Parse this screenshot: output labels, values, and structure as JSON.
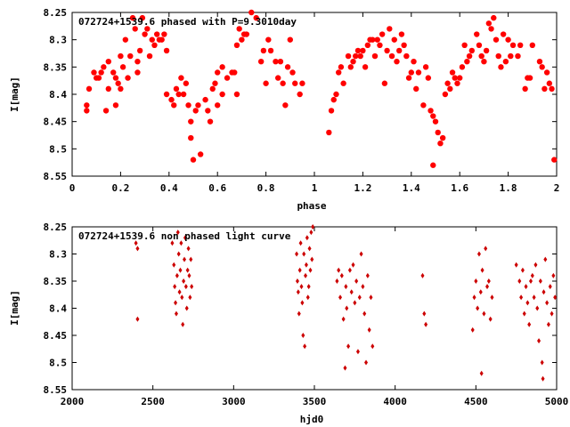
{
  "chart_data": [
    {
      "type": "scatter",
      "title": "072724+1539.6 phased with P=9.3010day",
      "xlabel": "phase",
      "ylabel": "I[mag]",
      "xlim": [
        0,
        2
      ],
      "ylim": [
        8.25,
        8.55
      ],
      "y_inverted": true,
      "xticks": [
        "0",
        "0.2",
        "0.4",
        "0.6",
        "0.8",
        "1",
        "1.2",
        "1.4",
        "1.6",
        "1.8",
        "2"
      ],
      "yticks": [
        "8.25",
        "8.3",
        "8.35",
        "8.4",
        "8.45",
        "8.5",
        "8.55"
      ],
      "marker": "filled-circle",
      "marker_color": "#ff0000",
      "grid": false,
      "points": [
        [
          0.06,
          8.42
        ],
        [
          0.06,
          8.43
        ],
        [
          0.07,
          8.39
        ],
        [
          0.09,
          8.36
        ],
        [
          0.1,
          8.37
        ],
        [
          0.11,
          8.37
        ],
        [
          0.12,
          8.36
        ],
        [
          0.13,
          8.35
        ],
        [
          0.14,
          8.43
        ],
        [
          0.15,
          8.39
        ],
        [
          0.15,
          8.34
        ],
        [
          0.17,
          8.36
        ],
        [
          0.18,
          8.37
        ],
        [
          0.18,
          8.42
        ],
        [
          0.19,
          8.38
        ],
        [
          0.2,
          8.33
        ],
        [
          0.2,
          8.39
        ],
        [
          0.21,
          8.35
        ],
        [
          0.22,
          8.3
        ],
        [
          0.23,
          8.37
        ],
        [
          0.24,
          8.33
        ],
        [
          0.25,
          8.26
        ],
        [
          0.26,
          8.28
        ],
        [
          0.27,
          8.36
        ],
        [
          0.27,
          8.34
        ],
        [
          0.28,
          8.32
        ],
        [
          0.29,
          8.26
        ],
        [
          0.3,
          8.29
        ],
        [
          0.31,
          8.28
        ],
        [
          0.32,
          8.33
        ],
        [
          0.33,
          8.3
        ],
        [
          0.34,
          8.31
        ],
        [
          0.35,
          8.29
        ],
        [
          0.36,
          8.3
        ],
        [
          0.37,
          8.3
        ],
        [
          0.38,
          8.29
        ],
        [
          0.39,
          8.32
        ],
        [
          0.39,
          8.4
        ],
        [
          0.41,
          8.41
        ],
        [
          0.42,
          8.42
        ],
        [
          0.43,
          8.39
        ],
        [
          0.44,
          8.4
        ],
        [
          0.45,
          8.37
        ],
        [
          0.46,
          8.4
        ],
        [
          0.47,
          8.38
        ],
        [
          0.48,
          8.42
        ],
        [
          0.49,
          8.45
        ],
        [
          0.49,
          8.48
        ],
        [
          0.5,
          8.52
        ],
        [
          0.51,
          8.43
        ],
        [
          0.52,
          8.42
        ],
        [
          0.53,
          8.51
        ],
        [
          0.55,
          8.41
        ],
        [
          0.56,
          8.43
        ],
        [
          0.57,
          8.45
        ],
        [
          0.58,
          8.39
        ],
        [
          0.59,
          8.38
        ],
        [
          0.6,
          8.36
        ],
        [
          0.6,
          8.42
        ],
        [
          0.62,
          8.35
        ],
        [
          0.62,
          8.4
        ],
        [
          0.64,
          8.37
        ],
        [
          0.66,
          8.36
        ],
        [
          0.67,
          8.36
        ],
        [
          0.68,
          8.31
        ],
        [
          0.68,
          8.4
        ],
        [
          0.69,
          8.28
        ],
        [
          0.7,
          8.3
        ],
        [
          0.71,
          8.29
        ],
        [
          0.72,
          8.29
        ],
        [
          0.74,
          8.25
        ],
        [
          0.76,
          8.26
        ],
        [
          0.78,
          8.34
        ],
        [
          0.79,
          8.32
        ],
        [
          0.8,
          8.38
        ],
        [
          0.81,
          8.3
        ],
        [
          0.82,
          8.32
        ],
        [
          0.84,
          8.34
        ],
        [
          0.85,
          8.37
        ],
        [
          0.86,
          8.34
        ],
        [
          0.87,
          8.38
        ],
        [
          0.88,
          8.42
        ],
        [
          0.89,
          8.35
        ],
        [
          0.9,
          8.3
        ],
        [
          0.91,
          8.36
        ],
        [
          0.92,
          8.38
        ],
        [
          0.94,
          8.4
        ],
        [
          0.95,
          8.38
        ],
        [
          1.06,
          8.47
        ],
        [
          1.07,
          8.43
        ],
        [
          1.08,
          8.41
        ],
        [
          1.09,
          8.4
        ],
        [
          1.1,
          8.36
        ],
        [
          1.11,
          8.35
        ],
        [
          1.12,
          8.38
        ],
        [
          1.14,
          8.33
        ],
        [
          1.15,
          8.35
        ],
        [
          1.16,
          8.34
        ],
        [
          1.17,
          8.33
        ],
        [
          1.18,
          8.32
        ],
        [
          1.19,
          8.33
        ],
        [
          1.2,
          8.32
        ],
        [
          1.21,
          8.35
        ],
        [
          1.22,
          8.31
        ],
        [
          1.23,
          8.3
        ],
        [
          1.24,
          8.3
        ],
        [
          1.25,
          8.33
        ],
        [
          1.26,
          8.3
        ],
        [
          1.27,
          8.31
        ],
        [
          1.28,
          8.29
        ],
        [
          1.29,
          8.38
        ],
        [
          1.3,
          8.32
        ],
        [
          1.31,
          8.28
        ],
        [
          1.32,
          8.33
        ],
        [
          1.33,
          8.3
        ],
        [
          1.34,
          8.34
        ],
        [
          1.35,
          8.32
        ],
        [
          1.36,
          8.29
        ],
        [
          1.37,
          8.31
        ],
        [
          1.38,
          8.33
        ],
        [
          1.39,
          8.37
        ],
        [
          1.4,
          8.36
        ],
        [
          1.41,
          8.34
        ],
        [
          1.42,
          8.39
        ],
        [
          1.43,
          8.36
        ],
        [
          1.45,
          8.42
        ],
        [
          1.46,
          8.35
        ],
        [
          1.47,
          8.37
        ],
        [
          1.48,
          8.43
        ],
        [
          1.49,
          8.44
        ],
        [
          1.49,
          8.53
        ],
        [
          1.5,
          8.45
        ],
        [
          1.51,
          8.47
        ],
        [
          1.52,
          8.49
        ],
        [
          1.53,
          8.48
        ],
        [
          1.54,
          8.4
        ],
        [
          1.55,
          8.38
        ],
        [
          1.56,
          8.39
        ],
        [
          1.57,
          8.36
        ],
        [
          1.58,
          8.37
        ],
        [
          1.59,
          8.38
        ],
        [
          1.6,
          8.37
        ],
        [
          1.61,
          8.35
        ],
        [
          1.62,
          8.31
        ],
        [
          1.63,
          8.34
        ],
        [
          1.64,
          8.33
        ],
        [
          1.65,
          8.32
        ],
        [
          1.67,
          8.29
        ],
        [
          1.68,
          8.31
        ],
        [
          1.69,
          8.33
        ],
        [
          1.7,
          8.34
        ],
        [
          1.71,
          8.32
        ],
        [
          1.72,
          8.27
        ],
        [
          1.73,
          8.28
        ],
        [
          1.74,
          8.26
        ],
        [
          1.75,
          8.3
        ],
        [
          1.76,
          8.33
        ],
        [
          1.77,
          8.35
        ],
        [
          1.78,
          8.29
        ],
        [
          1.79,
          8.34
        ],
        [
          1.8,
          8.3
        ],
        [
          1.81,
          8.33
        ],
        [
          1.82,
          8.31
        ],
        [
          1.84,
          8.33
        ],
        [
          1.85,
          8.31
        ],
        [
          1.87,
          8.39
        ],
        [
          1.88,
          8.37
        ],
        [
          1.89,
          8.37
        ],
        [
          1.9,
          8.31
        ],
        [
          1.93,
          8.34
        ],
        [
          1.94,
          8.35
        ],
        [
          1.95,
          8.39
        ],
        [
          1.96,
          8.36
        ],
        [
          1.97,
          8.38
        ],
        [
          1.98,
          8.39
        ],
        [
          1.99,
          8.52
        ]
      ]
    },
    {
      "type": "scatter",
      "title": "072724+1539.6 non phased light curve",
      "xlabel": "hjd0",
      "ylabel": "I[mag]",
      "xlim": [
        2000,
        5000
      ],
      "ylim": [
        8.25,
        8.55
      ],
      "y_inverted": true,
      "xticks": [
        "2000",
        "2500",
        "3000",
        "3500",
        "4000",
        "4500",
        "5000"
      ],
      "yticks": [
        "8.25",
        "8.3",
        "8.35",
        "8.4",
        "8.45",
        "8.5",
        "8.55"
      ],
      "marker": "small-diamond",
      "marker_color": "#cc0000",
      "grid": false,
      "points": [
        [
          2395,
          8.28
        ],
        [
          2405,
          8.29
        ],
        [
          2405,
          8.42
        ],
        [
          2620,
          8.28
        ],
        [
          2630,
          8.32
        ],
        [
          2635,
          8.36
        ],
        [
          2640,
          8.39
        ],
        [
          2645,
          8.41
        ],
        [
          2650,
          8.34
        ],
        [
          2655,
          8.26
        ],
        [
          2660,
          8.3
        ],
        [
          2665,
          8.37
        ],
        [
          2670,
          8.33
        ],
        [
          2675,
          8.28
        ],
        [
          2680,
          8.38
        ],
        [
          2685,
          8.43
        ],
        [
          2690,
          8.35
        ],
        [
          2695,
          8.31
        ],
        [
          2700,
          8.27
        ],
        [
          2705,
          8.36
        ],
        [
          2710,
          8.4
        ],
        [
          2715,
          8.33
        ],
        [
          2720,
          8.29
        ],
        [
          2725,
          8.34
        ],
        [
          2730,
          8.38
        ],
        [
          2735,
          8.31
        ],
        [
          2740,
          8.36
        ],
        [
          3390,
          8.3
        ],
        [
          3395,
          8.35
        ],
        [
          3400,
          8.37
        ],
        [
          3405,
          8.41
        ],
        [
          3410,
          8.33
        ],
        [
          3415,
          8.28
        ],
        [
          3420,
          8.36
        ],
        [
          3425,
          8.39
        ],
        [
          3430,
          8.45
        ],
        [
          3435,
          8.3
        ],
        [
          3440,
          8.47
        ],
        [
          3445,
          8.34
        ],
        [
          3450,
          8.32
        ],
        [
          3455,
          8.27
        ],
        [
          3460,
          8.38
        ],
        [
          3465,
          8.36
        ],
        [
          3470,
          8.29
        ],
        [
          3475,
          8.33
        ],
        [
          3480,
          8.26
        ],
        [
          3485,
          8.31
        ],
        [
          3490,
          8.25
        ],
        [
          3640,
          8.35
        ],
        [
          3650,
          8.33
        ],
        [
          3660,
          8.38
        ],
        [
          3670,
          8.34
        ],
        [
          3680,
          8.42
        ],
        [
          3690,
          8.51
        ],
        [
          3695,
          8.36
        ],
        [
          3700,
          8.4
        ],
        [
          3710,
          8.47
        ],
        [
          3720,
          8.33
        ],
        [
          3730,
          8.37
        ],
        [
          3740,
          8.32
        ],
        [
          3750,
          8.39
        ],
        [
          3760,
          8.35
        ],
        [
          3770,
          8.48
        ],
        [
          3780,
          8.38
        ],
        [
          3790,
          8.3
        ],
        [
          3800,
          8.36
        ],
        [
          3810,
          8.41
        ],
        [
          3820,
          8.5
        ],
        [
          3830,
          8.34
        ],
        [
          3840,
          8.44
        ],
        [
          3850,
          8.38
        ],
        [
          3860,
          8.47
        ],
        [
          4170,
          8.34
        ],
        [
          4180,
          8.41
        ],
        [
          4190,
          8.43
        ],
        [
          4480,
          8.44
        ],
        [
          4490,
          8.38
        ],
        [
          4500,
          8.35
        ],
        [
          4510,
          8.4
        ],
        [
          4520,
          8.3
        ],
        [
          4530,
          8.37
        ],
        [
          4535,
          8.52
        ],
        [
          4540,
          8.33
        ],
        [
          4550,
          8.41
        ],
        [
          4560,
          8.29
        ],
        [
          4570,
          8.36
        ],
        [
          4580,
          8.35
        ],
        [
          4590,
          8.42
        ],
        [
          4600,
          8.38
        ],
        [
          4750,
          8.32
        ],
        [
          4770,
          8.35
        ],
        [
          4780,
          8.38
        ],
        [
          4790,
          8.33
        ],
        [
          4800,
          8.41
        ],
        [
          4810,
          8.36
        ],
        [
          4820,
          8.39
        ],
        [
          4830,
          8.43
        ],
        [
          4840,
          8.35
        ],
        [
          4850,
          8.34
        ],
        [
          4860,
          8.38
        ],
        [
          4870,
          8.32
        ],
        [
          4880,
          8.4
        ],
        [
          4890,
          8.46
        ],
        [
          4900,
          8.35
        ],
        [
          4910,
          8.5
        ],
        [
          4915,
          8.53
        ],
        [
          4920,
          8.37
        ],
        [
          4930,
          8.31
        ],
        [
          4940,
          8.39
        ],
        [
          4950,
          8.43
        ],
        [
          4960,
          8.36
        ],
        [
          4970,
          8.41
        ],
        [
          4980,
          8.34
        ],
        [
          4990,
          8.38
        ]
      ]
    }
  ]
}
